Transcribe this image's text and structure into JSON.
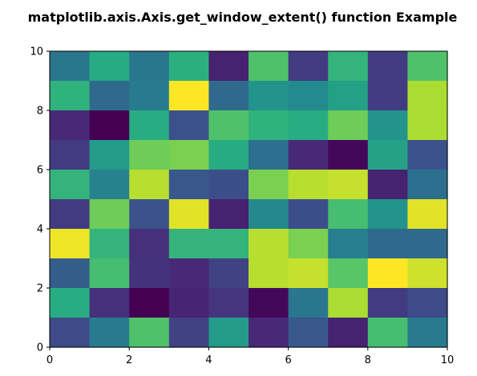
{
  "chart_data": {
    "type": "heatmap",
    "title": "matplotlib.axis.Axis.get_window_extent() function Example",
    "xlim": [
      0,
      10
    ],
    "ylim": [
      0,
      10
    ],
    "x_ticks": [
      "0",
      "2",
      "4",
      "6",
      "8",
      "10"
    ],
    "y_ticks": [
      "0",
      "2",
      "4",
      "6",
      "8",
      "10"
    ],
    "colormap": "viridis",
    "value_range": [
      0,
      1
    ],
    "grid": false,
    "rows_top_to_bottom": [
      [
        0.4,
        0.62,
        0.4,
        0.64,
        0.1,
        0.72,
        0.18,
        0.66,
        0.18,
        0.72
      ],
      [
        0.65,
        0.35,
        0.42,
        1.0,
        0.35,
        0.52,
        0.48,
        0.57,
        0.18,
        0.88
      ],
      [
        0.12,
        0.0,
        0.63,
        0.25,
        0.72,
        0.65,
        0.63,
        0.78,
        0.52,
        0.88
      ],
      [
        0.18,
        0.55,
        0.78,
        0.8,
        0.62,
        0.37,
        0.12,
        0.02,
        0.58,
        0.25
      ],
      [
        0.66,
        0.45,
        0.9,
        0.28,
        0.24,
        0.8,
        0.9,
        0.92,
        0.1,
        0.37
      ],
      [
        0.18,
        0.78,
        0.26,
        0.96,
        0.1,
        0.47,
        0.24,
        0.7,
        0.52,
        0.96
      ],
      [
        0.98,
        0.66,
        0.14,
        0.66,
        0.66,
        0.9,
        0.8,
        0.43,
        0.35,
        0.35
      ],
      [
        0.3,
        0.7,
        0.15,
        0.12,
        0.2,
        0.9,
        0.92,
        0.74,
        1.0,
        0.93
      ],
      [
        0.63,
        0.14,
        0.0,
        0.11,
        0.16,
        0.02,
        0.4,
        0.88,
        0.18,
        0.23
      ],
      [
        0.23,
        0.42,
        0.72,
        0.2,
        0.55,
        0.12,
        0.28,
        0.1,
        0.7,
        0.42
      ]
    ]
  }
}
